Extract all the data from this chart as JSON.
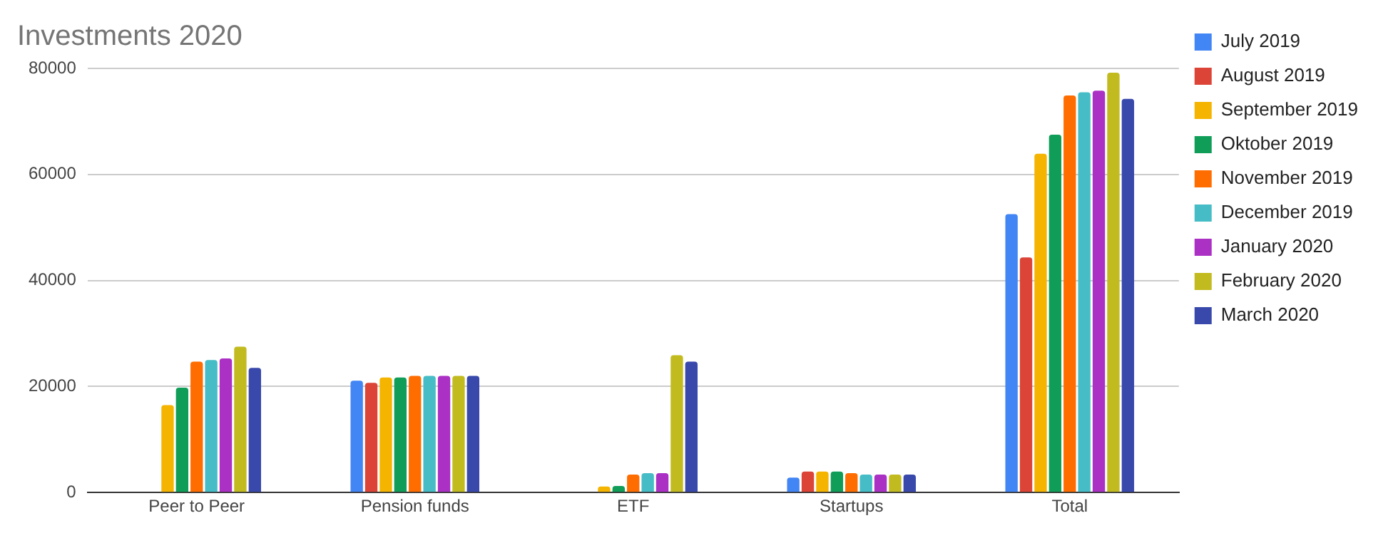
{
  "chart_data": {
    "type": "bar",
    "title": "Investments 2020",
    "categories": [
      "Peer to Peer",
      "Pension funds",
      "ETF",
      "Startups",
      "Total"
    ],
    "series": [
      {
        "name": "July 2019",
        "color": "#4285f4",
        "values": [
          null,
          21100,
          null,
          2800,
          52500
        ]
      },
      {
        "name": "August 2019",
        "color": "#db4437",
        "values": [
          null,
          20700,
          null,
          3950,
          44350
        ]
      },
      {
        "name": "September 2019",
        "color": "#f4b400",
        "values": [
          16500,
          21700,
          1150,
          3950,
          63900
        ]
      },
      {
        "name": "Oktober 2019",
        "color": "#0f9d58",
        "values": [
          19800,
          21700,
          1250,
          3950,
          67500
        ]
      },
      {
        "name": "November 2019",
        "color": "#ff6d00",
        "values": [
          24700,
          22000,
          3400,
          3650,
          74900
        ]
      },
      {
        "name": "December 2019",
        "color": "#46bdc6",
        "values": [
          25000,
          22000,
          3650,
          3400,
          75500
        ]
      },
      {
        "name": "January 2020",
        "color": "#ab30c4",
        "values": [
          25300,
          22000,
          3650,
          3400,
          75800
        ]
      },
      {
        "name": "February 2020",
        "color": "#c2bb20",
        "values": [
          27500,
          22000,
          25900,
          3400,
          79200
        ]
      },
      {
        "name": "March 2020",
        "color": "#3949ab",
        "values": [
          23500,
          22000,
          24700,
          3400,
          74250
        ]
      }
    ],
    "ylim": [
      0,
      80000
    ],
    "yticks": [
      0,
      20000,
      40000,
      60000,
      80000
    ],
    "grid": "y",
    "legend": "right"
  }
}
